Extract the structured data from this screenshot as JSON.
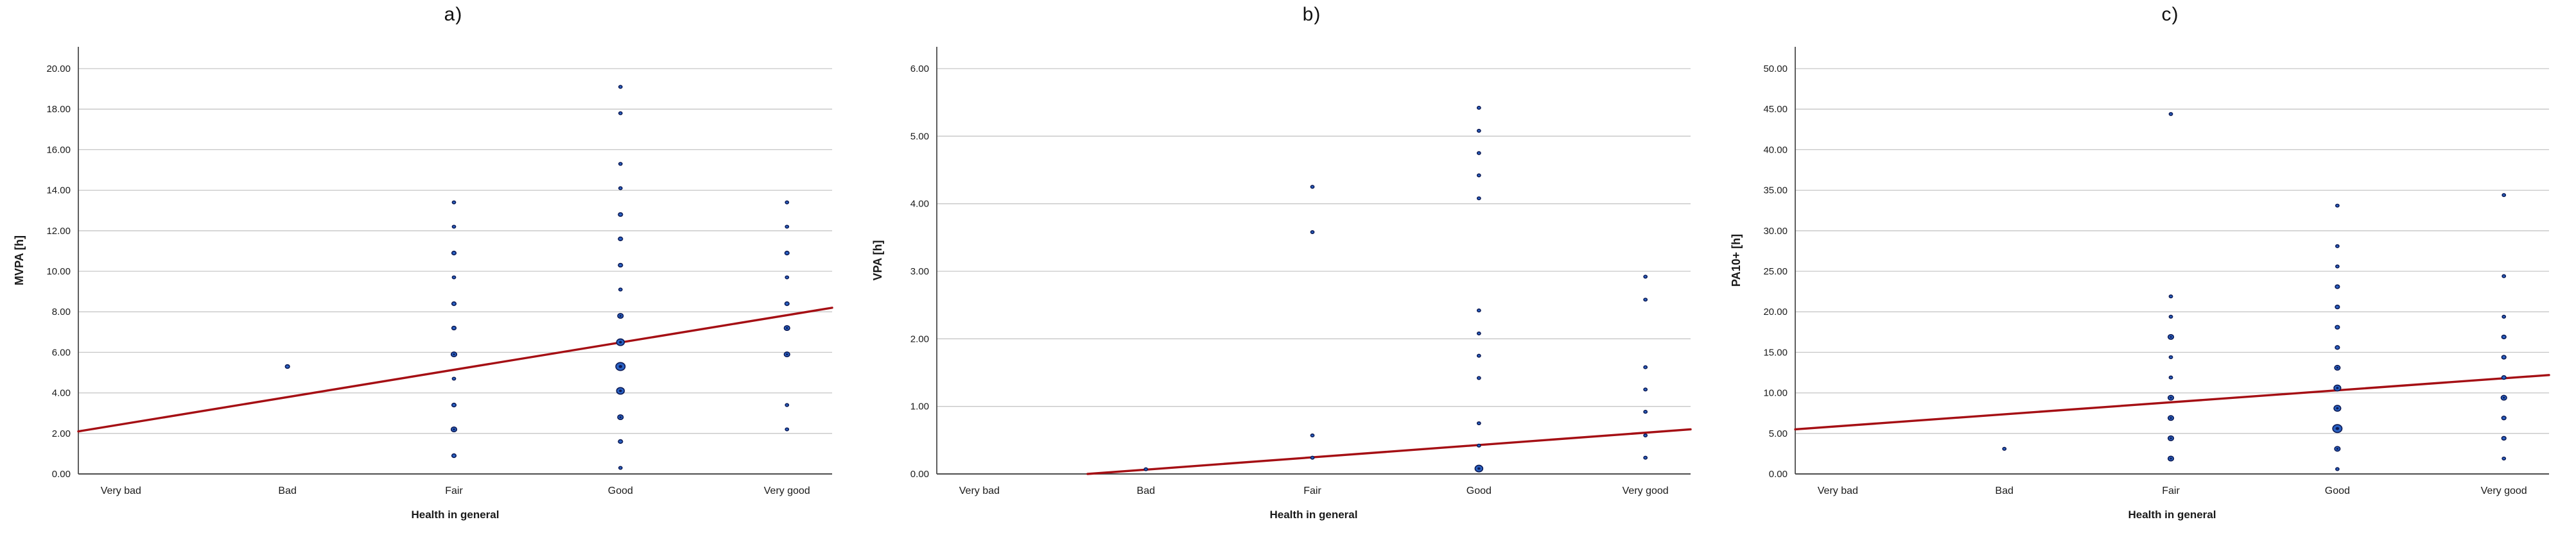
{
  "theme": {
    "background": "#ffffff",
    "dot_fill": "#2a62c4",
    "dot_stroke": "#0c1a55",
    "dot_core": "#0c1a55",
    "trend_color": "#a50f14",
    "grid_color": "#c6c6c6",
    "axis_color": "#4d4d4d",
    "text_color": "#1a1a1a"
  },
  "size_scale": {
    "s": 2.6,
    "sm": 3.3,
    "md": 4.3,
    "ml": 5.3,
    "lg": 6.0,
    "xl": 7.2
  },
  "x_axis": {
    "label": "Health in general",
    "categories": [
      "Very bad",
      "Bad",
      "Fair",
      "Good",
      "Very good"
    ]
  },
  "chart_data": [
    {
      "type": "scatter",
      "title": "a)",
      "ylabel": "MVPA [h]",
      "xlabel": "Health in general",
      "categories": [
        "Very bad",
        "Bad",
        "Fair",
        "Good",
        "Very good"
      ],
      "ylim": [
        0,
        20
      ],
      "ytick_labels": [
        "0.00",
        "2.00",
        "4.00",
        "6.00",
        "8.00",
        "10.00",
        "12.00",
        "14.00",
        "16.00",
        "18.00",
        "20.00"
      ],
      "grid": true,
      "legend": "none",
      "trend": {
        "x0_frac": 0.0,
        "y0": 2.1,
        "x1_frac": 1.0,
        "y1": 8.2
      },
      "points": [
        {
          "cat": "Bad",
          "y": 5.3,
          "size": "sm"
        },
        {
          "cat": "Fair",
          "y": 13.4,
          "size": "s"
        },
        {
          "cat": "Fair",
          "y": 12.2,
          "size": "s"
        },
        {
          "cat": "Fair",
          "y": 10.9,
          "size": "sm"
        },
        {
          "cat": "Fair",
          "y": 9.7,
          "size": "s"
        },
        {
          "cat": "Fair",
          "y": 8.4,
          "size": "sm"
        },
        {
          "cat": "Fair",
          "y": 7.2,
          "size": "sm"
        },
        {
          "cat": "Fair",
          "y": 5.9,
          "size": "md"
        },
        {
          "cat": "Fair",
          "y": 4.7,
          "size": "s"
        },
        {
          "cat": "Fair",
          "y": 3.4,
          "size": "sm"
        },
        {
          "cat": "Fair",
          "y": 2.2,
          "size": "md"
        },
        {
          "cat": "Fair",
          "y": 0.9,
          "size": "sm"
        },
        {
          "cat": "Good",
          "y": 19.1,
          "size": "s"
        },
        {
          "cat": "Good",
          "y": 17.8,
          "size": "s"
        },
        {
          "cat": "Good",
          "y": 15.3,
          "size": "s"
        },
        {
          "cat": "Good",
          "y": 14.1,
          "size": "s"
        },
        {
          "cat": "Good",
          "y": 12.8,
          "size": "sm"
        },
        {
          "cat": "Good",
          "y": 11.6,
          "size": "sm"
        },
        {
          "cat": "Good",
          "y": 10.3,
          "size": "sm"
        },
        {
          "cat": "Good",
          "y": 9.1,
          "size": "s"
        },
        {
          "cat": "Good",
          "y": 7.8,
          "size": "md"
        },
        {
          "cat": "Good",
          "y": 6.5,
          "size": "lg"
        },
        {
          "cat": "Good",
          "y": 5.3,
          "size": "xl"
        },
        {
          "cat": "Good",
          "y": 4.1,
          "size": "lg"
        },
        {
          "cat": "Good",
          "y": 2.8,
          "size": "md"
        },
        {
          "cat": "Good",
          "y": 1.6,
          "size": "sm"
        },
        {
          "cat": "Good",
          "y": 0.3,
          "size": "s"
        },
        {
          "cat": "Very good",
          "y": 13.4,
          "size": "s"
        },
        {
          "cat": "Very good",
          "y": 12.2,
          "size": "s"
        },
        {
          "cat": "Very good",
          "y": 10.9,
          "size": "sm"
        },
        {
          "cat": "Very good",
          "y": 9.7,
          "size": "s"
        },
        {
          "cat": "Very good",
          "y": 8.4,
          "size": "sm"
        },
        {
          "cat": "Very good",
          "y": 7.2,
          "size": "md"
        },
        {
          "cat": "Very good",
          "y": 5.9,
          "size": "md"
        },
        {
          "cat": "Very good",
          "y": 3.4,
          "size": "s"
        },
        {
          "cat": "Very good",
          "y": 2.2,
          "size": "s"
        }
      ]
    },
    {
      "type": "scatter",
      "title": "b)",
      "ylabel": "VPA [h]",
      "xlabel": "Health in general",
      "categories": [
        "Very bad",
        "Bad",
        "Fair",
        "Good",
        "Very good"
      ],
      "ylim": [
        0,
        6
      ],
      "ytick_labels": [
        "0.00",
        "1.00",
        "2.00",
        "3.00",
        "4.00",
        "5.00",
        "6.00"
      ],
      "grid": true,
      "legend": "none",
      "trend": {
        "x0_frac": 0.2,
        "y0": 0.0,
        "x1_frac": 1.0,
        "y1": 0.66
      },
      "points": [
        {
          "cat": "Bad",
          "y": 0.07,
          "size": "s"
        },
        {
          "cat": "Fair",
          "y": 4.25,
          "size": "s"
        },
        {
          "cat": "Fair",
          "y": 3.58,
          "size": "s"
        },
        {
          "cat": "Fair",
          "y": 0.57,
          "size": "s"
        },
        {
          "cat": "Fair",
          "y": 0.24,
          "size": "s"
        },
        {
          "cat": "Good",
          "y": 5.42,
          "size": "s"
        },
        {
          "cat": "Good",
          "y": 5.08,
          "size": "s"
        },
        {
          "cat": "Good",
          "y": 4.75,
          "size": "s"
        },
        {
          "cat": "Good",
          "y": 4.42,
          "size": "s"
        },
        {
          "cat": "Good",
          "y": 4.08,
          "size": "s"
        },
        {
          "cat": "Good",
          "y": 2.42,
          "size": "s"
        },
        {
          "cat": "Good",
          "y": 2.08,
          "size": "s"
        },
        {
          "cat": "Good",
          "y": 1.75,
          "size": "s"
        },
        {
          "cat": "Good",
          "y": 1.42,
          "size": "s"
        },
        {
          "cat": "Good",
          "y": 0.75,
          "size": "s"
        },
        {
          "cat": "Good",
          "y": 0.42,
          "size": "s"
        },
        {
          "cat": "Good",
          "y": 0.08,
          "size": "lg"
        },
        {
          "cat": "Very good",
          "y": 2.92,
          "size": "s"
        },
        {
          "cat": "Very good",
          "y": 2.58,
          "size": "s"
        },
        {
          "cat": "Very good",
          "y": 1.58,
          "size": "s"
        },
        {
          "cat": "Very good",
          "y": 1.25,
          "size": "s"
        },
        {
          "cat": "Very good",
          "y": 0.92,
          "size": "s"
        },
        {
          "cat": "Very good",
          "y": 0.57,
          "size": "s"
        },
        {
          "cat": "Very good",
          "y": 0.24,
          "size": "s"
        }
      ]
    },
    {
      "type": "scatter",
      "title": "c)",
      "ylabel": "PA10+ [h]",
      "xlabel": "Health in general",
      "categories": [
        "Very bad",
        "Bad",
        "Fair",
        "Good",
        "Very good"
      ],
      "ylim": [
        0,
        50
      ],
      "ytick_labels": [
        "0.00",
        "5.00",
        "10.00",
        "15.00",
        "20.00",
        "25.00",
        "30.00",
        "35.00",
        "40.00",
        "45.00",
        "50.00"
      ],
      "grid": true,
      "legend": "none",
      "trend": {
        "x0_frac": 0.0,
        "y0": 5.5,
        "x1_frac": 1.0,
        "y1": 12.2
      },
      "points": [
        {
          "cat": "Bad",
          "y": 3.1,
          "size": "s"
        },
        {
          "cat": "Fair",
          "y": 44.4,
          "size": "s"
        },
        {
          "cat": "Fair",
          "y": 21.9,
          "size": "s"
        },
        {
          "cat": "Fair",
          "y": 19.4,
          "size": "s"
        },
        {
          "cat": "Fair",
          "y": 16.9,
          "size": "md"
        },
        {
          "cat": "Fair",
          "y": 14.4,
          "size": "s"
        },
        {
          "cat": "Fair",
          "y": 11.9,
          "size": "s"
        },
        {
          "cat": "Fair",
          "y": 9.4,
          "size": "md"
        },
        {
          "cat": "Fair",
          "y": 6.9,
          "size": "md"
        },
        {
          "cat": "Fair",
          "y": 4.4,
          "size": "md"
        },
        {
          "cat": "Fair",
          "y": 1.9,
          "size": "md"
        },
        {
          "cat": "Good",
          "y": 33.1,
          "size": "s"
        },
        {
          "cat": "Good",
          "y": 28.1,
          "size": "s"
        },
        {
          "cat": "Good",
          "y": 25.6,
          "size": "s"
        },
        {
          "cat": "Good",
          "y": 23.1,
          "size": "sm"
        },
        {
          "cat": "Good",
          "y": 20.6,
          "size": "sm"
        },
        {
          "cat": "Good",
          "y": 18.1,
          "size": "sm"
        },
        {
          "cat": "Good",
          "y": 15.6,
          "size": "sm"
        },
        {
          "cat": "Good",
          "y": 13.1,
          "size": "md"
        },
        {
          "cat": "Good",
          "y": 10.6,
          "size": "ml"
        },
        {
          "cat": "Good",
          "y": 8.1,
          "size": "ml"
        },
        {
          "cat": "Good",
          "y": 5.6,
          "size": "xl"
        },
        {
          "cat": "Good",
          "y": 3.1,
          "size": "md"
        },
        {
          "cat": "Good",
          "y": 0.6,
          "size": "s"
        },
        {
          "cat": "Very good",
          "y": 34.4,
          "size": "s"
        },
        {
          "cat": "Very good",
          "y": 24.4,
          "size": "s"
        },
        {
          "cat": "Very good",
          "y": 19.4,
          "size": "s"
        },
        {
          "cat": "Very good",
          "y": 16.9,
          "size": "sm"
        },
        {
          "cat": "Very good",
          "y": 14.4,
          "size": "sm"
        },
        {
          "cat": "Very good",
          "y": 11.9,
          "size": "sm"
        },
        {
          "cat": "Very good",
          "y": 9.4,
          "size": "md"
        },
        {
          "cat": "Very good",
          "y": 6.9,
          "size": "sm"
        },
        {
          "cat": "Very good",
          "y": 4.4,
          "size": "sm"
        },
        {
          "cat": "Very good",
          "y": 1.9,
          "size": "s"
        }
      ]
    }
  ]
}
